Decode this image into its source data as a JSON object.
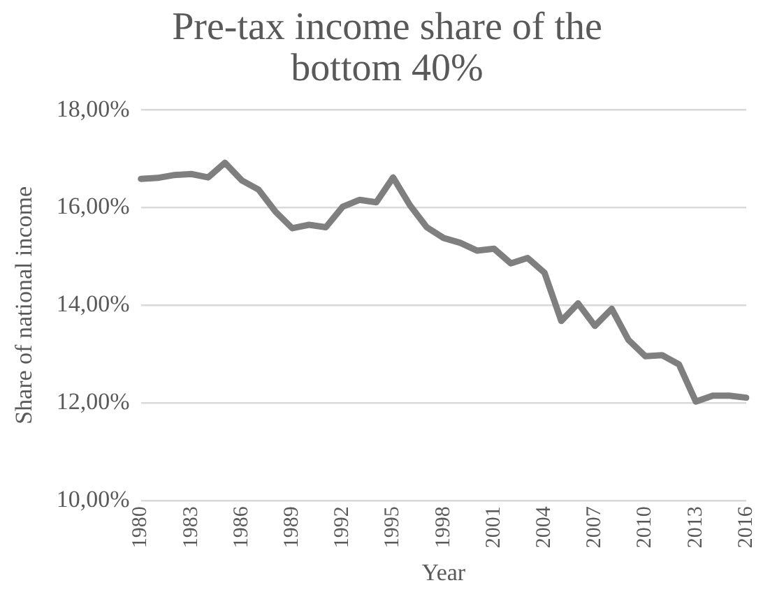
{
  "chart_data": {
    "type": "line",
    "title": "Pre-tax income share of the bottom 40%",
    "xlabel": "Year",
    "ylabel": "Share of national income",
    "categories": [
      "1980",
      null,
      null,
      "1983",
      null,
      null,
      "1986",
      null,
      null,
      "1989",
      null,
      null,
      "1992",
      null,
      null,
      "1995",
      null,
      null,
      "1998",
      null,
      null,
      "2001",
      null,
      null,
      "2004",
      null,
      null,
      "2007",
      null,
      null,
      "2010",
      null,
      null,
      "2013",
      null,
      null,
      "2016"
    ],
    "series": [
      {
        "color": "#7f7f7f",
        "values": [
          16.59,
          16.61,
          16.67,
          16.69,
          16.62,
          16.92,
          16.56,
          16.37,
          15.92,
          15.58,
          15.65,
          15.6,
          16.02,
          16.16,
          16.11,
          16.62,
          16.05,
          15.6,
          15.38,
          15.28,
          15.12,
          15.16,
          14.86,
          14.97,
          14.67,
          13.68,
          14.04,
          13.58,
          13.93,
          13.29,
          12.96,
          12.98,
          12.79,
          12.03,
          12.15,
          12.15,
          12.11
        ]
      }
    ],
    "ylim": [
      10,
      18
    ],
    "yticks": [
      {
        "value": 10,
        "label": "10,00%"
      },
      {
        "value": 12,
        "label": "12,00%"
      },
      {
        "value": 14,
        "label": "14,00%"
      },
      {
        "value": 16,
        "label": "16,00%"
      },
      {
        "value": 18,
        "label": "18,00%"
      }
    ],
    "grid": "y",
    "legend": false,
    "marker": "none",
    "line_style": "solid"
  }
}
